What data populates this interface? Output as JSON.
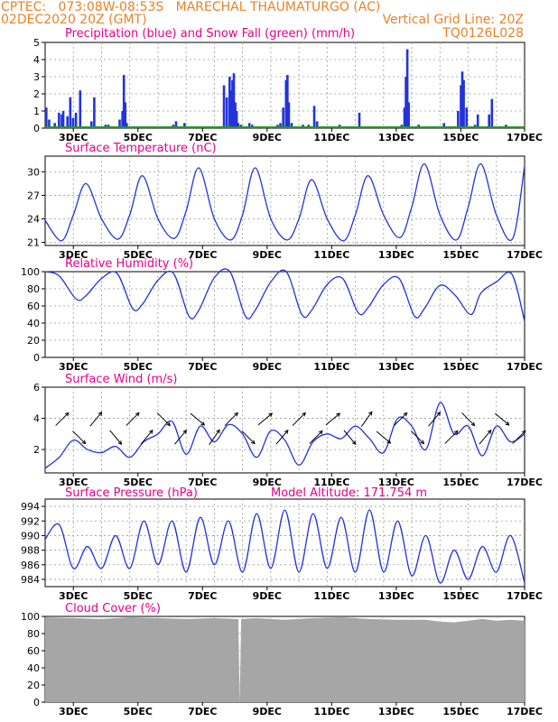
{
  "header": {
    "line1": "CPTEC:   073:08W-08:53S   MARECHAL THAUMATURGO (AC)",
    "line2_left": "02DEC2020 20Z (GMT)",
    "line2_right": "Vertical Grid Line: 20Z",
    "code": "TQ0126L028"
  },
  "colors": {
    "header": "#e8822a",
    "title": "#e6008c",
    "series": "#2233dd",
    "snow": "#1a9c1a",
    "cloud": "#a6a6a6",
    "grid": "#9a9a9a"
  },
  "x_labels": [
    "3DEC",
    "5DEC",
    "7DEC",
    "9DEC",
    "11DEC",
    "13DEC",
    "15DEC",
    "17DEC"
  ],
  "chart_data": [
    {
      "id": "precip",
      "type": "bar",
      "title": "Precipitation (blue) and Snow Fall (green) (mm/h)",
      "ylim": [
        0,
        5
      ],
      "yticks": [
        0,
        1,
        2,
        3,
        4,
        5
      ],
      "series": [
        {
          "name": "Precipitation",
          "color": "#2233dd",
          "x": [
            0.0,
            0.1,
            0.3,
            0.45,
            0.55,
            0.6,
            0.75,
            0.85,
            0.95,
            1.05,
            1.2,
            1.6,
            1.7,
            2.1,
            2.2,
            2.6,
            2.7,
            2.75,
            2.8,
            2.85,
            3.1,
            3.2,
            4.5,
            4.6,
            4.7,
            4.8,
            4.9,
            5.0,
            5.1,
            6.3,
            6.4,
            6.5,
            6.55,
            6.6,
            6.65,
            6.7,
            6.75,
            6.8,
            6.9,
            7.2,
            7.3,
            8.2,
            8.3,
            8.4,
            8.5,
            8.55,
            8.6,
            8.7,
            9.1,
            9.3,
            9.5,
            9.6,
            10.4,
            10.5,
            10.8,
            11.1,
            11.3,
            12.6,
            12.7,
            12.75,
            12.8,
            12.85,
            13.2,
            13.3,
            13.6,
            14.1,
            14.2,
            14.6,
            14.7,
            14.75,
            14.8,
            14.9,
            15.2,
            15.25,
            15.3,
            15.6,
            15.7,
            15.8,
            16.3,
            16.6,
            16.8
          ],
          "values": [
            1.2,
            0.5,
            0.3,
            0.9,
            0.8,
            1.0,
            0.7,
            1.8,
            0.6,
            0.9,
            2.2,
            0.4,
            1.8,
            0.2,
            0.2,
            0.5,
            1.0,
            3.1,
            1.5,
            0.3,
            0.1,
            0.1,
            0.2,
            0.4,
            0.1,
            0.1,
            0.3,
            0.1,
            0.1,
            2.5,
            1.8,
            3.0,
            2.2,
            2.8,
            3.2,
            1.5,
            1.0,
            0.3,
            0.2,
            0.3,
            0.2,
            0.2,
            0.3,
            1.2,
            2.8,
            3.1,
            1.5,
            0.3,
            0.2,
            0.2,
            1.3,
            0.4,
            0.2,
            0.1,
            0.1,
            0.9,
            0.1,
            0.2,
            1.2,
            3.0,
            4.6,
            1.5,
            0.2,
            0.1,
            0.1,
            0.3,
            0.1,
            1.0,
            2.5,
            3.3,
            2.8,
            1.2,
            0.2,
            0.1,
            0.8,
            0.1,
            0.8,
            1.7,
            0.2,
            0.1,
            0.1
          ]
        },
        {
          "name": "Snow Fall",
          "color": "#1a9c1a",
          "x": [
            0.0,
            17.0
          ],
          "values": [
            0.0,
            0.0
          ]
        }
      ]
    },
    {
      "id": "temp",
      "type": "line",
      "title": "Surface Temperature (nC)",
      "ylim": [
        20.6,
        32
      ],
      "yticks": [
        21,
        24,
        27,
        30
      ],
      "series": [
        {
          "name": "Temperature",
          "color": "#2233dd",
          "x": [
            0.0,
            0.58,
            1.0,
            1.45,
            2.0,
            2.58,
            3.0,
            3.45,
            4.0,
            4.58,
            5.0,
            5.45,
            6.0,
            6.58,
            7.0,
            7.45,
            8.0,
            8.58,
            9.0,
            9.45,
            10.0,
            10.58,
            11.0,
            11.45,
            12.0,
            12.58,
            13.0,
            13.45,
            14.0,
            14.58,
            15.0,
            15.45,
            16.0,
            16.58,
            17.0
          ],
          "values": [
            23.8,
            21.2,
            24.5,
            28.5,
            24.0,
            21.4,
            24.5,
            29.5,
            24.0,
            21.5,
            25.0,
            30.5,
            24.0,
            21.3,
            24.5,
            30.5,
            24.0,
            21.3,
            24.0,
            29.0,
            24.0,
            21.2,
            24.5,
            29.5,
            24.5,
            21.6,
            25.5,
            31.0,
            24.5,
            21.3,
            25.5,
            31.0,
            24.5,
            21.5,
            30.8
          ]
        }
      ]
    },
    {
      "id": "rh",
      "type": "line",
      "title": "Relative Humidity (%)",
      "ylim": [
        0,
        100
      ],
      "yticks": [
        0,
        20,
        40,
        60,
        80,
        100
      ],
      "series": [
        {
          "name": "Relative Humidity",
          "color": "#2233dd",
          "x": [
            0.0,
            0.5,
            1.1,
            1.45,
            2.0,
            2.55,
            3.1,
            3.45,
            4.0,
            4.55,
            5.1,
            5.45,
            6.0,
            6.55,
            7.1,
            7.45,
            8.0,
            8.55,
            9.1,
            9.45,
            10.0,
            10.55,
            11.1,
            11.45,
            12.0,
            12.55,
            13.1,
            13.45,
            14.0,
            14.55,
            15.1,
            15.45,
            16.0,
            16.55,
            17.0
          ],
          "values": [
            100,
            95,
            68,
            72,
            92,
            98,
            57,
            62,
            90,
            98,
            48,
            55,
            93,
            100,
            48,
            55,
            88,
            100,
            50,
            55,
            85,
            92,
            52,
            58,
            85,
            92,
            48,
            57,
            84,
            72,
            50,
            75,
            88,
            97,
            42
          ]
        }
      ]
    },
    {
      "id": "wind",
      "type": "line",
      "title": "Surface Wind (m/s)",
      "ylim": [
        0.5,
        6
      ],
      "yticks": [
        2,
        4,
        6
      ],
      "series": [
        {
          "name": "Wind Speed",
          "color": "#2233dd",
          "x": [
            0.0,
            0.5,
            1.0,
            1.5,
            2.0,
            2.5,
            3.0,
            3.5,
            4.0,
            4.5,
            5.0,
            5.5,
            6.0,
            6.5,
            7.0,
            7.5,
            8.0,
            8.5,
            9.0,
            9.5,
            10.0,
            10.5,
            11.0,
            11.5,
            12.0,
            12.5,
            13.0,
            13.5,
            14.0,
            14.5,
            15.0,
            15.5,
            16.0,
            16.5,
            17.0
          ],
          "values": [
            0.8,
            1.5,
            2.6,
            2.0,
            1.8,
            2.2,
            1.5,
            2.5,
            3.0,
            3.8,
            1.7,
            3.5,
            2.5,
            3.6,
            3.0,
            1.5,
            3.2,
            2.6,
            1.0,
            2.5,
            3.0,
            2.7,
            3.5,
            2.7,
            1.8,
            4.0,
            3.5,
            2.0,
            5.0,
            3.0,
            3.5,
            1.6,
            3.5,
            2.5,
            3.0
          ]
        }
      ],
      "wind_arrows": [
        {
          "x": 0.6,
          "dir": 45
        },
        {
          "x": 1.2,
          "dir": -45
        },
        {
          "x": 1.8,
          "dir": 50
        },
        {
          "x": 2.5,
          "dir": -50
        },
        {
          "x": 3.1,
          "dir": 45
        },
        {
          "x": 3.6,
          "dir": 50
        },
        {
          "x": 4.2,
          "dir": -45
        },
        {
          "x": 4.8,
          "dir": 50
        },
        {
          "x": 5.4,
          "dir": -40
        },
        {
          "x": 6.0,
          "dir": 55
        },
        {
          "x": 6.6,
          "dir": 45
        },
        {
          "x": 7.2,
          "dir": -45
        },
        {
          "x": 7.8,
          "dir": 40
        },
        {
          "x": 8.4,
          "dir": 50
        },
        {
          "x": 9.0,
          "dir": 45
        },
        {
          "x": 9.6,
          "dir": 45
        },
        {
          "x": 10.2,
          "dir": 40
        },
        {
          "x": 10.8,
          "dir": -50
        },
        {
          "x": 11.4,
          "dir": 55
        },
        {
          "x": 12.0,
          "dir": -40
        },
        {
          "x": 12.6,
          "dir": 45
        },
        {
          "x": 13.2,
          "dir": -45
        },
        {
          "x": 13.8,
          "dir": 50
        },
        {
          "x": 14.4,
          "dir": 45
        },
        {
          "x": 15.0,
          "dir": -45
        },
        {
          "x": 15.6,
          "dir": 50
        },
        {
          "x": 16.2,
          "dir": -40
        },
        {
          "x": 16.8,
          "dir": 45
        }
      ]
    },
    {
      "id": "pres",
      "type": "line",
      "title": "Surface Pressure (hPa)",
      "subtitle": "Model Altitude: 171.754 m",
      "ylim": [
        983,
        995
      ],
      "yticks": [
        984,
        986,
        988,
        990,
        992,
        994
      ],
      "series": [
        {
          "name": "Pressure",
          "color": "#2233dd",
          "x": [
            0.0,
            0.5,
            1.0,
            1.5,
            2.0,
            2.5,
            3.0,
            3.5,
            4.0,
            4.5,
            5.0,
            5.5,
            6.0,
            6.5,
            7.0,
            7.5,
            8.0,
            8.5,
            9.0,
            9.5,
            10.0,
            10.5,
            11.0,
            11.5,
            12.0,
            12.5,
            13.0,
            13.5,
            14.0,
            14.5,
            15.0,
            15.5,
            16.0,
            16.5,
            17.0
          ],
          "values": [
            989.5,
            991.5,
            985.5,
            988.5,
            985.5,
            990.0,
            985.5,
            992.0,
            986.0,
            992.0,
            985.0,
            992.5,
            986.0,
            992.0,
            985.0,
            993.0,
            985.5,
            993.5,
            985.0,
            993.0,
            985.5,
            992.5,
            985.0,
            993.5,
            985.0,
            992.0,
            984.5,
            990.0,
            983.5,
            988.0,
            984.0,
            988.5,
            985.0,
            990.0,
            983.5
          ]
        }
      ]
    },
    {
      "id": "cloud",
      "type": "area",
      "title": "Cloud Cover (%)",
      "ylim": [
        0,
        100
      ],
      "yticks": [
        0,
        20,
        40,
        60,
        80,
        100
      ],
      "series": [
        {
          "name": "Cloud Cover",
          "color": "#a6a6a6",
          "x": [
            0.0,
            1.0,
            2.0,
            3.0,
            4.0,
            5.0,
            6.0,
            6.85,
            6.9,
            6.95,
            7.5,
            8.5,
            9.5,
            10.5,
            11.5,
            12.5,
            13.5,
            14.0,
            14.5,
            15.0,
            15.5,
            16.0,
            16.5,
            17.0
          ],
          "values": [
            99,
            98,
            97,
            99,
            98,
            97,
            98,
            97,
            0,
            97,
            98,
            96,
            98,
            99,
            97,
            96,
            96,
            94,
            93,
            95,
            97,
            95,
            96,
            95
          ]
        }
      ]
    }
  ]
}
